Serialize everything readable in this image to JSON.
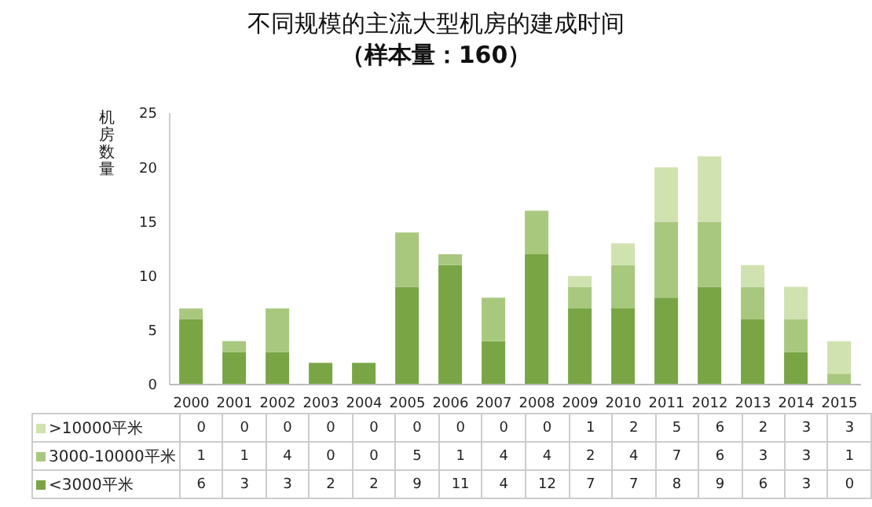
{
  "chart_data": {
    "type": "bar",
    "title": "不同规模的主流大型机房的建成时间",
    "subtitle": "（样本量：160）",
    "ylabel": "机房数量",
    "categories": [
      "2000",
      "2001",
      "2002",
      "2003",
      "2004",
      "2005",
      "2006",
      "2007",
      "2008",
      "2009",
      "2010",
      "2011",
      "2012",
      "2013",
      "2014",
      "2015"
    ],
    "stacked": true,
    "ylim": [
      0,
      25
    ],
    "yticks": [
      0,
      5,
      10,
      15,
      20,
      25
    ],
    "legend": "bottom left",
    "data_labels": true,
    "series": [
      {
        "name": "<3000平米",
        "color": "#79a545",
        "values": [
          6,
          3,
          3,
          2,
          2,
          9,
          11,
          4,
          12,
          7,
          7,
          8,
          9,
          6,
          3,
          0
        ]
      },
      {
        "name": "3000-10000平米",
        "color": "#a8c87e",
        "values": [
          1,
          1,
          4,
          0,
          0,
          5,
          1,
          4,
          4,
          2,
          4,
          7,
          6,
          3,
          3,
          1
        ]
      },
      {
        "name": ">10000平米",
        "color": "#cfe2b0",
        "values": [
          0,
          0,
          0,
          0,
          0,
          0,
          0,
          0,
          0,
          1,
          2,
          5,
          6,
          2,
          3,
          3
        ]
      }
    ]
  }
}
